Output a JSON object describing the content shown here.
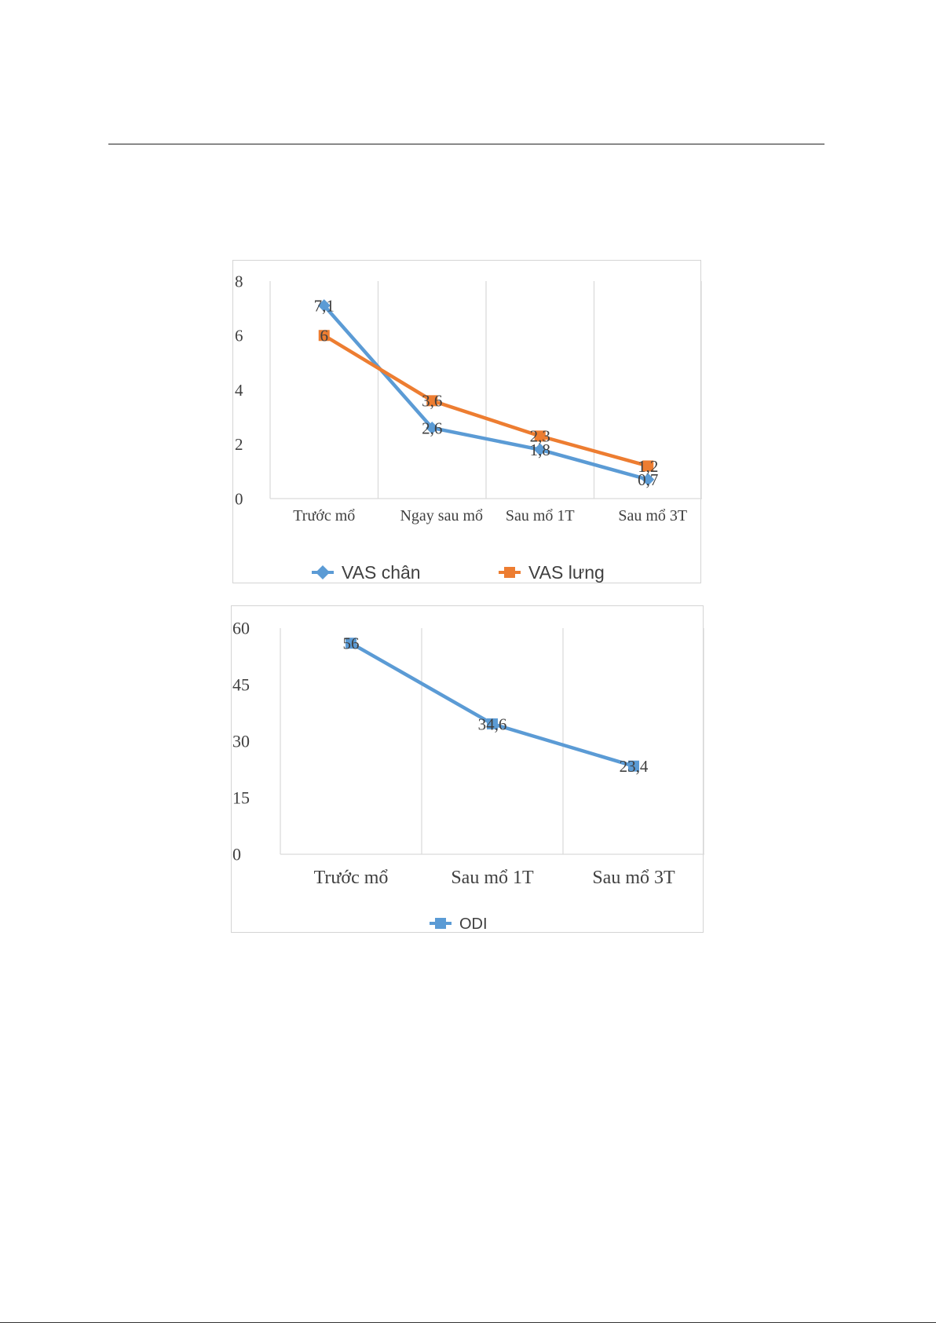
{
  "chart_data": [
    {
      "type": "line",
      "categories": [
        "Trước mổ",
        "Ngay sau mổ",
        "Sau mổ 1T",
        "Sau mổ 3T"
      ],
      "series": [
        {
          "name": "VAS chân",
          "values": [
            7.1,
            2.6,
            1.8,
            0.7
          ],
          "labels": [
            "7,1",
            "2,6",
            "1,8",
            "0,7"
          ],
          "color": "#5b9bd5",
          "marker": "diamond"
        },
        {
          "name": "VAS lưng",
          "values": [
            6.0,
            3.6,
            2.3,
            1.2
          ],
          "labels": [
            "6",
            "3,6",
            "2,3",
            "1,2"
          ],
          "color": "#ed7d31",
          "marker": "square"
        }
      ],
      "yticks": [
        "0",
        "2",
        "4",
        "6",
        "8"
      ],
      "ylim": [
        0,
        8
      ],
      "grid": "vertical",
      "legend": "bottom"
    },
    {
      "type": "line",
      "categories": [
        "Trước mổ",
        "Sau mổ 1T",
        "Sau mổ 3T"
      ],
      "series": [
        {
          "name": "ODI",
          "values": [
            56,
            34.6,
            23.4
          ],
          "labels": [
            "56",
            "34,6",
            "23,4"
          ],
          "color": "#5b9bd5",
          "marker": "square"
        }
      ],
      "yticks": [
        "0",
        "15",
        "30",
        "45",
        "60"
      ],
      "ylim": [
        0,
        60
      ],
      "grid": "vertical",
      "legend": "bottom"
    }
  ]
}
